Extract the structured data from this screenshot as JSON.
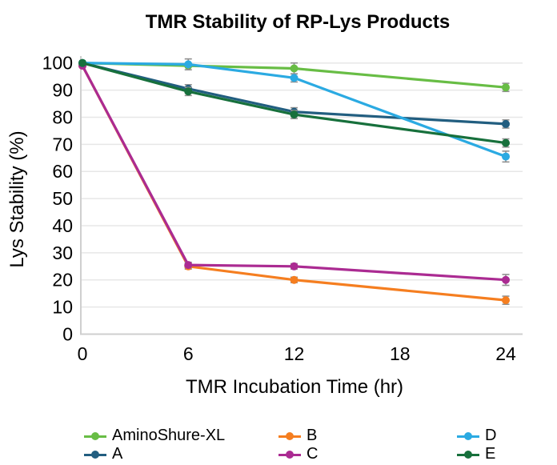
{
  "chart_data": {
    "type": "line",
    "title": "TMR Stability of RP-Lys Products",
    "xlabel": "TMR Incubation Time (hr)",
    "ylabel": "Lys Stability (%)",
    "x": [
      0,
      6,
      12,
      24
    ],
    "xticks": [
      0,
      6,
      12,
      18,
      24
    ],
    "yticks": [
      0,
      10,
      20,
      30,
      40,
      50,
      60,
      70,
      80,
      90,
      100
    ],
    "xlim": [
      0,
      24
    ],
    "ylim": [
      0,
      100
    ],
    "grid": "horizontal-light-gray",
    "legend_position": "bottom-3-columns",
    "series": [
      {
        "name": "AminoShure-XL",
        "color": "#68bd45",
        "values": [
          100,
          99,
          98,
          91
        ],
        "errors": [
          0,
          0,
          2,
          1.5
        ]
      },
      {
        "name": "A",
        "color": "#225e80",
        "values": [
          100,
          90.5,
          82,
          77.5
        ],
        "errors": [
          0,
          1.5,
          1.5,
          1.5
        ]
      },
      {
        "name": "B",
        "color": "#f57e20",
        "values": [
          99,
          25,
          20,
          12.5
        ],
        "errors": [
          0,
          1,
          1,
          1.5
        ]
      },
      {
        "name": "C",
        "color": "#ab2b92",
        "values": [
          99,
          25.5,
          25,
          20
        ],
        "errors": [
          0,
          1,
          1,
          2
        ]
      },
      {
        "name": "D",
        "color": "#2baae2",
        "values": [
          100,
          99.5,
          94.5,
          65.5
        ],
        "errors": [
          0,
          2,
          1.5,
          2
        ]
      },
      {
        "name": "E",
        "color": "#17703c",
        "values": [
          100,
          89.5,
          81,
          70.5
        ],
        "errors": [
          0,
          1.5,
          1.5,
          1.5
        ]
      }
    ],
    "error_bar_color": "#8f8f8f",
    "gridline_color": "#e7e7e7",
    "axis_line_color": "#cfcfcf",
    "text_color": "#000000"
  }
}
